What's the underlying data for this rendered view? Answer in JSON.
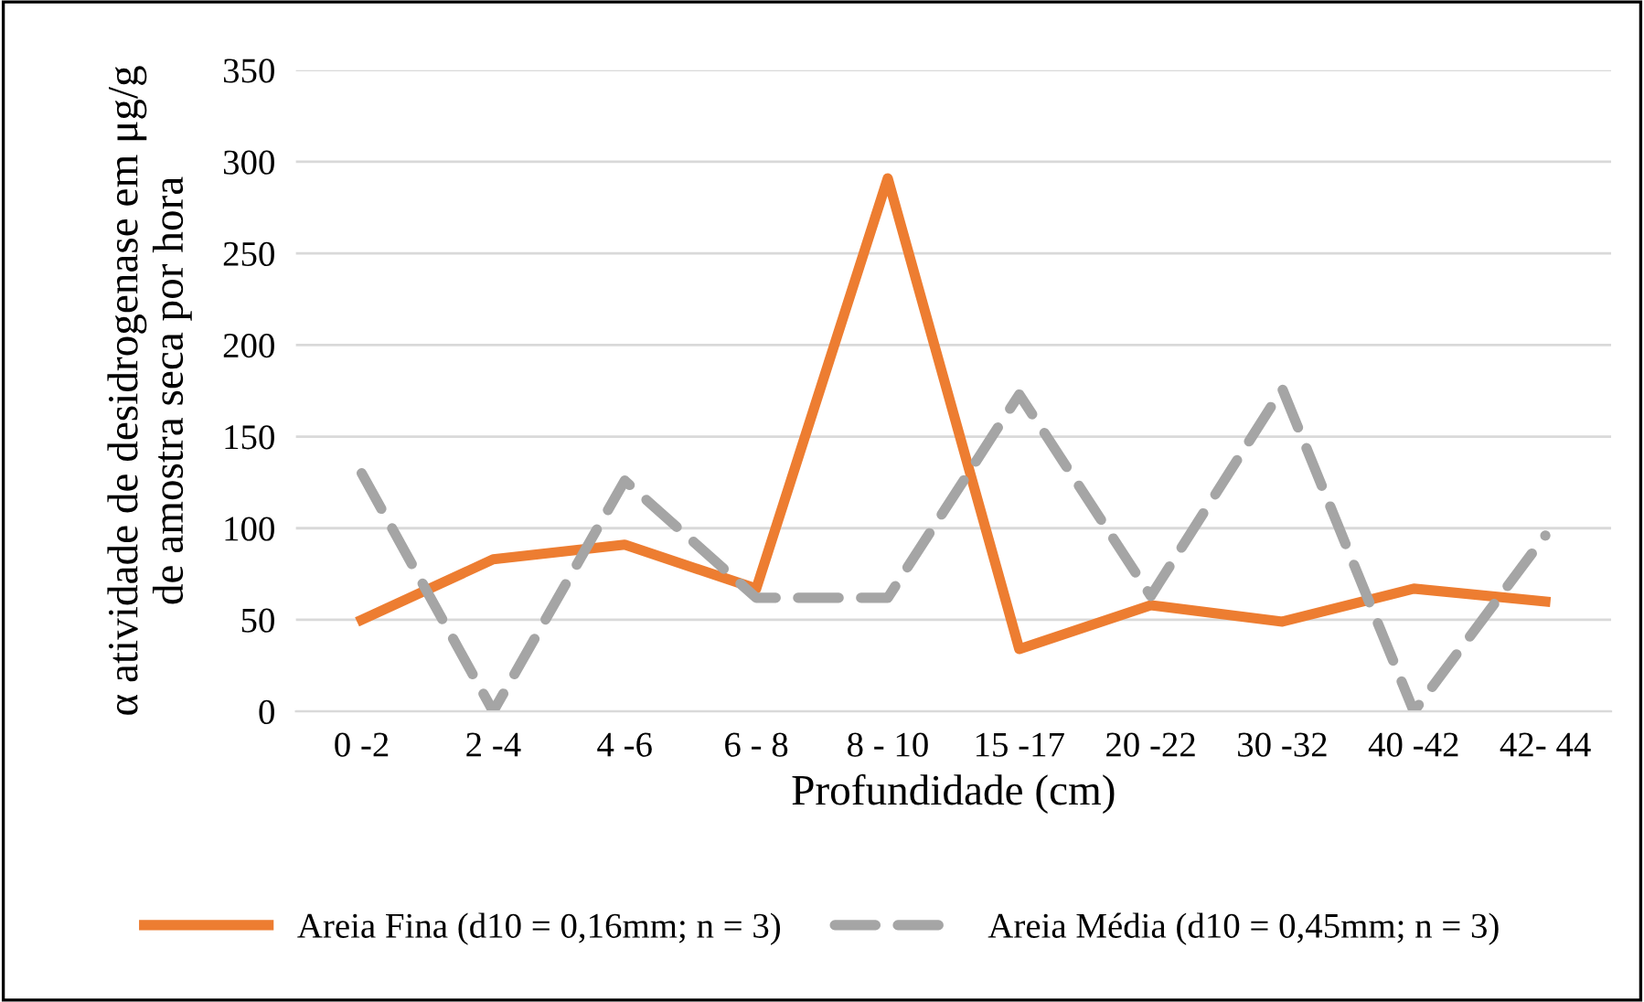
{
  "chart_data": {
    "type": "line",
    "xlabel": "Profundidade (cm)",
    "ylabel": "α atividade de desidrogenase em μg/g\nde amostra seca por hora",
    "categories": [
      "0 -2",
      "2 -4",
      "4 -6",
      "6 - 8",
      "8 - 10",
      "15 -17",
      "20 -22",
      "30 -32",
      "40 -42",
      "42- 44"
    ],
    "series": [
      {
        "name": "Areia Fina (d10 = 0,16mm; n = 3)",
        "color": "#ed7d31",
        "line_style": "solid",
        "values": [
          50,
          83,
          91,
          67,
          291,
          34,
          58,
          49,
          67,
          60
        ]
      },
      {
        "name": "Areia Média (d10 = 0,45mm; n = 3)",
        "color": "#a5a5a5",
        "line_style": "dashed",
        "values": [
          130,
          0,
          126,
          62,
          62,
          173,
          63,
          176,
          0,
          96
        ]
      }
    ],
    "ylim": [
      0,
      350
    ],
    "yticks": [
      0,
      50,
      100,
      150,
      200,
      250,
      300,
      350
    ],
    "grid": "y",
    "legend": "bottom",
    "marker": "none"
  }
}
